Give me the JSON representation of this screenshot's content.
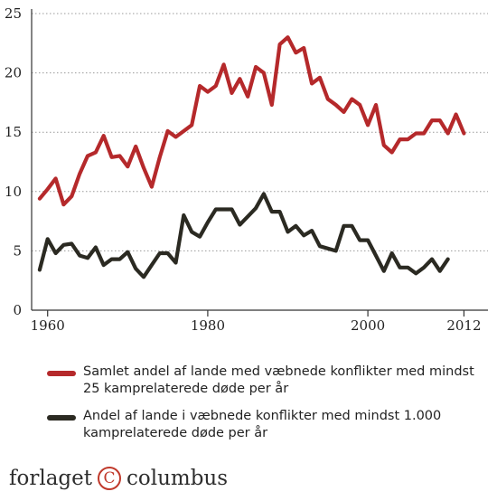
{
  "chart_data": {
    "type": "line",
    "title": "",
    "xlabel": "",
    "ylabel": "",
    "xlim": [
      1958,
      2015
    ],
    "ylim": [
      0,
      25
    ],
    "x_ticks": [
      1960,
      1980,
      2000,
      2012
    ],
    "y_ticks": [
      0,
      5,
      10,
      15,
      20,
      25
    ],
    "grid": "horizontal dotted",
    "legend_position": "bottom",
    "x": [
      1959,
      1960,
      1961,
      1962,
      1963,
      1964,
      1965,
      1966,
      1967,
      1968,
      1969,
      1970,
      1971,
      1972,
      1973,
      1974,
      1975,
      1976,
      1977,
      1978,
      1979,
      1980,
      1981,
      1982,
      1983,
      1984,
      1985,
      1986,
      1987,
      1988,
      1989,
      1990,
      1991,
      1992,
      1993,
      1994,
      1995,
      1996,
      1997,
      1998,
      1999,
      2000,
      2001,
      2002,
      2003,
      2004,
      2005,
      2006,
      2007,
      2008,
      2009,
      2010,
      2011,
      2012,
      2013,
      2014
    ],
    "series": [
      {
        "name": "Samlet andel af lande med væbnede konflikter med mindst 25 kamprelaterede døde per år",
        "color": "#b5292b",
        "values": [
          9.4,
          10.2,
          11.1,
          8.9,
          9.6,
          11.5,
          13.0,
          13.3,
          14.7,
          12.9,
          13.0,
          12.1,
          13.8,
          12.0,
          10.4,
          12.9,
          15.1,
          14.6,
          15.1,
          15.6,
          18.9,
          18.4,
          18.9,
          20.7,
          18.3,
          19.5,
          18.0,
          20.5,
          20.0,
          17.3,
          22.4,
          23.0,
          21.7,
          22.1,
          19.1,
          19.6,
          17.8,
          17.3,
          16.7,
          17.8,
          17.3,
          15.6,
          17.3,
          13.9,
          13.3,
          14.4,
          14.4,
          14.9,
          14.9,
          16.0,
          16.0,
          14.9,
          16.5,
          14.9,
          null,
          null
        ]
      },
      {
        "name": "Andel af lande i væbnede konflikter med mindst 1.000 kamprelaterede døde per år",
        "color": "#2b2a22",
        "values": [
          3.4,
          6.0,
          4.8,
          5.5,
          5.6,
          4.6,
          4.4,
          5.3,
          3.8,
          4.3,
          4.3,
          4.9,
          3.5,
          2.8,
          3.8,
          4.8,
          4.8,
          4.0,
          8.0,
          6.6,
          6.2,
          7.4,
          8.5,
          8.5,
          8.5,
          7.2,
          7.9,
          8.6,
          9.8,
          8.3,
          8.3,
          6.6,
          7.1,
          6.3,
          6.7,
          5.4,
          5.2,
          5.0,
          7.1,
          7.1,
          5.9,
          5.9,
          4.6,
          3.3,
          4.8,
          3.6,
          3.6,
          3.1,
          3.6,
          4.3,
          3.3,
          4.3,
          null,
          null,
          null,
          null
        ]
      }
    ]
  },
  "axes": {
    "y_tick_labels": [
      "0",
      "5",
      "10",
      "15",
      "20",
      "25"
    ],
    "x_tick_labels": [
      "1960",
      "1980",
      "2000",
      "2012"
    ]
  },
  "legend": {
    "items": [
      {
        "label": "Samlet andel af lande med væbnede konflikter med mindst 25 kamprelaterede døde per år",
        "color": "#b5292b"
      },
      {
        "label": "Andel af lande i væbnede konflikter med mindst 1.000 kamprelaterede døde per år",
        "color": "#2b2a22"
      }
    ]
  },
  "logo": {
    "text_left": "forlaget",
    "mark": "C",
    "text_right": "columbus"
  }
}
